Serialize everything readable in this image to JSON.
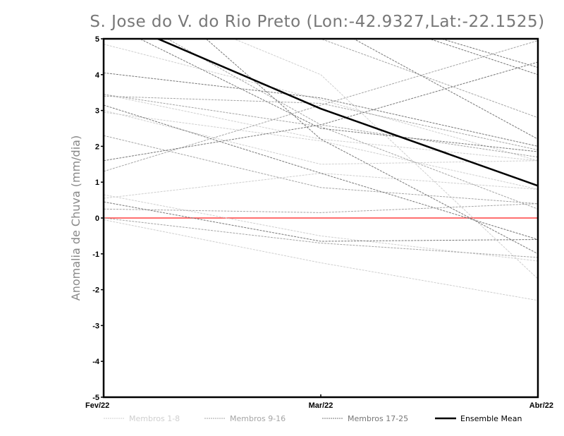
{
  "chart_data": {
    "type": "line",
    "title": "S. Jose do V. do Rio Preto (Lon:-42.9327,Lat:-22.1525)",
    "xlabel": "",
    "ylabel": "Anomalia de Chuva (mm/dia)",
    "categories": [
      "Fev/22",
      "Mar/22",
      "Abr/22"
    ],
    "ylim": [
      -5,
      5
    ],
    "yticks": [
      -5,
      -4,
      -3,
      -2,
      -1,
      0,
      1,
      2,
      3,
      4,
      5
    ],
    "reference_line": {
      "value": 0,
      "color": "#ff4040"
    },
    "legend_position": "bottom",
    "groups": [
      {
        "name": "Membros 1-8",
        "color": "#cfcfcf",
        "series": [
          [
            4.85,
            3.3,
            1.6
          ],
          [
            3.45,
            2.2,
            1.6
          ],
          [
            3.0,
            1.5,
            1.6
          ],
          [
            2.95,
            2.15,
            0.8
          ],
          [
            0.65,
            -0.5,
            -1.2
          ],
          [
            0.55,
            1.25,
            0.8
          ],
          [
            -0.05,
            -1.25,
            -2.3
          ],
          [
            6.5,
            4.0,
            -1.7
          ]
        ]
      },
      {
        "name": "Membros 9-16",
        "color": "#a5a5a5",
        "series": [
          [
            1.3,
            3.15,
            4.95
          ],
          [
            3.4,
            3.2,
            1.9
          ],
          [
            6.0,
            2.6,
            1.7
          ],
          [
            2.3,
            0.85,
            0.4
          ],
          [
            0.25,
            0.15,
            0.4
          ],
          [
            6.5,
            5.0,
            2.8
          ],
          [
            0.0,
            -0.7,
            -1.1
          ],
          [
            3.45,
            2.55,
            0.25
          ]
        ]
      },
      {
        "name": "Membros 17-25",
        "color": "#777777",
        "series": [
          [
            4.05,
            3.35,
            2.0
          ],
          [
            1.6,
            2.6,
            4.35
          ],
          [
            3.15,
            1.25,
            -0.6
          ],
          [
            0.45,
            -0.65,
            -0.6
          ],
          [
            7.5,
            2.2,
            -1.0
          ],
          [
            5.5,
            2.5,
            1.85
          ],
          [
            7.0,
            6.0,
            4.0
          ],
          [
            6.5,
            5.5,
            2.2
          ],
          [
            8.0,
            6.0,
            4.2
          ]
        ]
      },
      {
        "name": "Ensemble Mean",
        "color": "#000000",
        "series": [
          [
            5.65,
            3.05,
            0.9
          ]
        ]
      }
    ]
  }
}
